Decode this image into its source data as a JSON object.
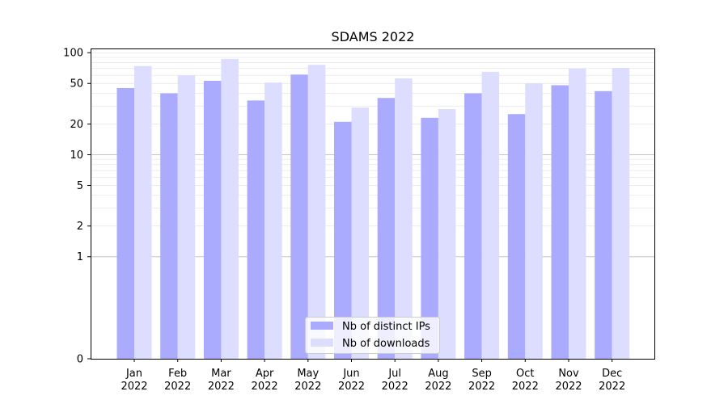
{
  "chart_data": {
    "type": "bar",
    "title": "SDAMS 2022",
    "xlabel": "",
    "ylabel": "",
    "y_scale": "symlog",
    "ylim": [
      0,
      110
    ],
    "yticks": [
      0,
      1,
      2,
      5,
      10,
      20,
      50,
      100
    ],
    "ytick_labels": [
      "0",
      "1",
      "2",
      "5",
      "10",
      "20",
      "50",
      "100"
    ],
    "categories": [
      [
        "Jan",
        "2022"
      ],
      [
        "Feb",
        "2022"
      ],
      [
        "Mar",
        "2022"
      ],
      [
        "Apr",
        "2022"
      ],
      [
        "May",
        "2022"
      ],
      [
        "Jun",
        "2022"
      ],
      [
        "Jul",
        "2022"
      ],
      [
        "Aug",
        "2022"
      ],
      [
        "Sep",
        "2022"
      ],
      [
        "Oct",
        "2022"
      ],
      [
        "Nov",
        "2022"
      ],
      [
        "Dec",
        "2022"
      ]
    ],
    "series": [
      {
        "name": "Nb of distinct IPs",
        "color": "#aaaaff",
        "values": [
          45,
          40,
          53,
          34,
          61,
          21,
          36,
          23,
          40,
          25,
          48,
          42
        ]
      },
      {
        "name": "Nb of downloads",
        "color": "#ddddff",
        "values": [
          74,
          60,
          87,
          51,
          76,
          29,
          56,
          28,
          65,
          50,
          70,
          71
        ]
      }
    ],
    "grid": "horizontal",
    "legend": "bottom-center"
  }
}
